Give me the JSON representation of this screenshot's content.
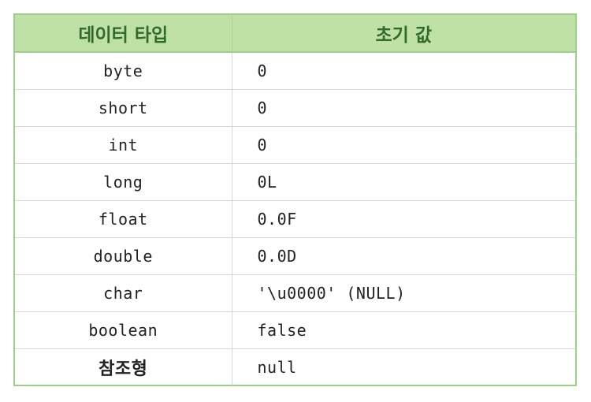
{
  "table": {
    "headers": [
      "데이터 타입",
      "초기 값"
    ],
    "rows": [
      {
        "type": "byte",
        "default": "0"
      },
      {
        "type": "short",
        "default": "0"
      },
      {
        "type": "int",
        "default": "0"
      },
      {
        "type": "long",
        "default": "0L"
      },
      {
        "type": "float",
        "default": "0.0F"
      },
      {
        "type": "double",
        "default": "0.0D"
      },
      {
        "type": "char",
        "default": "'\\u0000' (NULL)"
      },
      {
        "type": "boolean",
        "default": "false"
      },
      {
        "type": "참조형",
        "default": "null"
      }
    ]
  },
  "colors": {
    "header_bg": "#bfe1a6",
    "header_text": "#2f6b2c",
    "border": "#9bcf8a"
  }
}
